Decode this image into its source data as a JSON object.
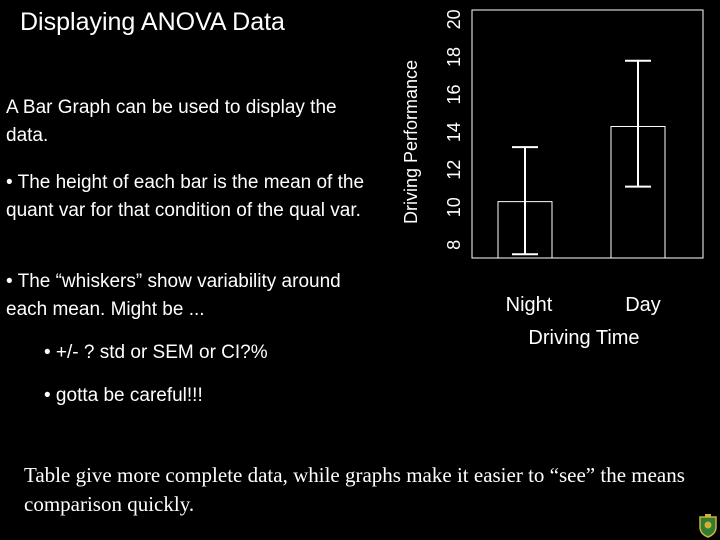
{
  "slide": {
    "title": "Displaying ANOVA Data",
    "intro": "A Bar Graph can be used to display the data.",
    "bullet_height": "• The height of each bar is the mean of the quant var for that condition of the qual var.",
    "bullet_whiskers": "• The “whiskers” show variability around each mean. Might be ...",
    "bullet_sd": "• +/- ? std or SEM or CI?%",
    "bullet_careful": "• gotta be careful!!!",
    "footnote": "Table give more complete data, while graphs make it easier to “see” the means comparison quickly."
  },
  "chart_data": {
    "type": "bar",
    "categories": [
      "Night",
      "Day"
    ],
    "values": [
      10.3,
      14.3
    ],
    "error": [
      [
        7.5,
        13.2
      ],
      [
        11.1,
        17.8
      ]
    ],
    "ylim": [
      7.3,
      20.5
    ],
    "yticks": [
      8,
      10,
      12,
      14,
      16,
      18,
      20
    ],
    "xlabel": "Driving Time",
    "ylabel": "Driving  Performance",
    "grid": false,
    "legend": "none"
  },
  "colors": {
    "background": "#000000",
    "foreground": "#ffffff"
  },
  "icons": {
    "corner_logo": "crest-icon"
  }
}
